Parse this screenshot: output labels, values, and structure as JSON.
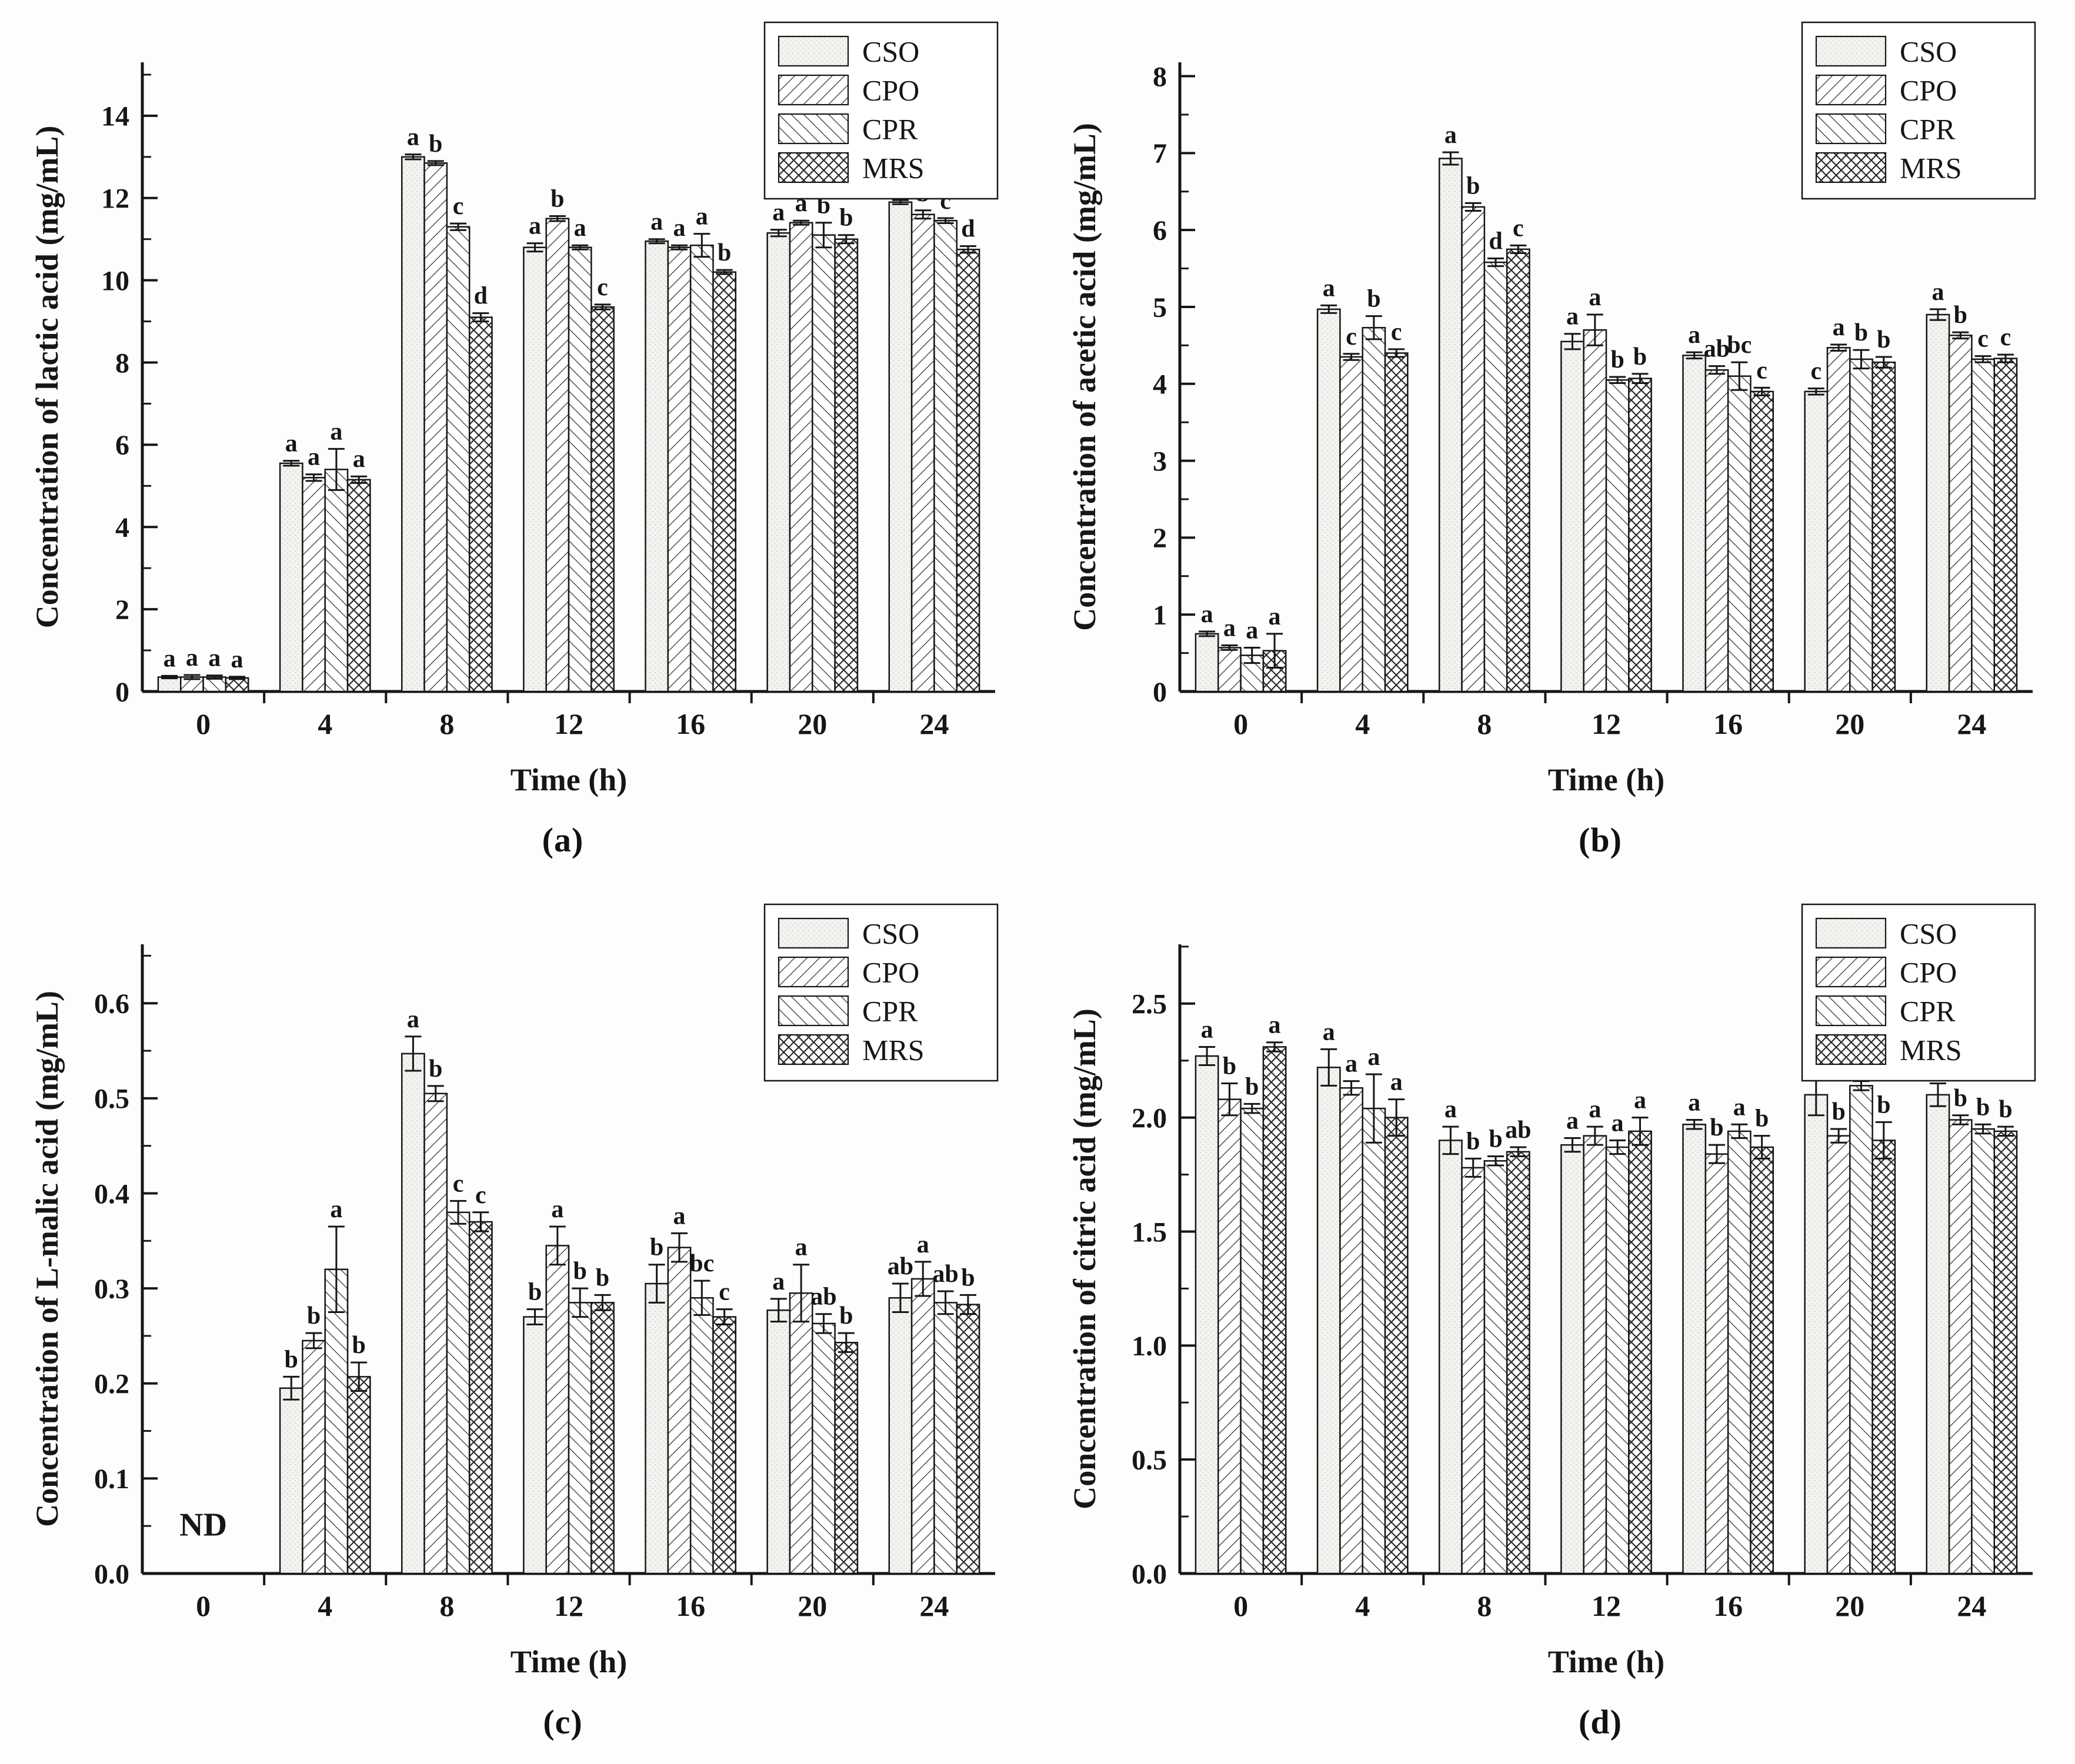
{
  "figure": {
    "background": "#fdfdfd",
    "ink": "#161616",
    "bar_fill_base": "#ffffff",
    "cso_fill": "#f3f2ef"
  },
  "legend": {
    "labels": [
      "CSO",
      "CPO",
      "CPR",
      "MRS"
    ],
    "patterns": [
      "dots",
      "diag-up",
      "diag-down",
      "crosshatch"
    ],
    "position": "top-right"
  },
  "chart_data": [
    {
      "id": "a",
      "type": "bar",
      "caption": "(a)",
      "xlabel": "Time (h)",
      "ylabel": "Concentration of lactic acid (mg/mL)",
      "categories": [
        "0",
        "4",
        "8",
        "12",
        "16",
        "20",
        "24"
      ],
      "ylim": [
        0,
        15.3
      ],
      "ytick_max": 14,
      "yticks_step": 2,
      "yticks_minor_step": 1,
      "ytick_decimals": 0,
      "grid": false,
      "series": [
        {
          "name": "CSO",
          "pattern": "dots",
          "values": [
            0.35,
            5.55,
            13.0,
            10.8,
            10.95,
            11.15,
            11.9
          ],
          "errors": [
            0.03,
            0.06,
            0.06,
            0.1,
            0.05,
            0.08,
            0.05
          ],
          "letters": [
            "a",
            "a",
            "a",
            "a",
            "a",
            "a",
            "a"
          ]
        },
        {
          "name": "CPO",
          "pattern": "diag-up",
          "values": [
            0.35,
            5.2,
            12.85,
            11.5,
            10.8,
            11.4,
            11.6
          ],
          "errors": [
            0.05,
            0.08,
            0.05,
            0.06,
            0.05,
            0.05,
            0.1
          ],
          "letters": [
            "a",
            "a",
            "b",
            "b",
            "a",
            "a",
            "b"
          ]
        },
        {
          "name": "CPR",
          "pattern": "diag-down",
          "values": [
            0.35,
            5.4,
            11.3,
            10.8,
            10.85,
            11.1,
            11.45
          ],
          "errors": [
            0.04,
            0.5,
            0.08,
            0.05,
            0.28,
            0.3,
            0.06
          ],
          "letters": [
            "a",
            "a",
            "c",
            "a",
            "a",
            "b",
            "c"
          ]
        },
        {
          "name": "MRS",
          "pattern": "crosshatch",
          "values": [
            0.33,
            5.15,
            9.1,
            9.35,
            10.2,
            11.0,
            10.75
          ],
          "errors": [
            0.03,
            0.08,
            0.1,
            0.06,
            0.05,
            0.1,
            0.08
          ],
          "letters": [
            "a",
            "a",
            "d",
            "c",
            "b",
            "b",
            "d"
          ]
        }
      ],
      "annotations": []
    },
    {
      "id": "b",
      "type": "bar",
      "caption": "(b)",
      "xlabel": "Time (h)",
      "ylabel": "Concentration of acetic acid (mg/mL)",
      "categories": [
        "0",
        "4",
        "8",
        "12",
        "16",
        "20",
        "24"
      ],
      "ylim": [
        0,
        8.18
      ],
      "ytick_max": 8,
      "yticks_step": 1,
      "yticks_minor_step": 0.5,
      "ytick_decimals": 0,
      "grid": false,
      "series": [
        {
          "name": "CSO",
          "pattern": "dots",
          "values": [
            0.75,
            4.97,
            6.93,
            4.55,
            4.37,
            3.9,
            4.9
          ],
          "errors": [
            0.03,
            0.05,
            0.08,
            0.1,
            0.04,
            0.04,
            0.07
          ],
          "letters": [
            "a",
            "a",
            "a",
            "a",
            "a",
            "c",
            "a"
          ]
        },
        {
          "name": "CPO",
          "pattern": "diag-up",
          "values": [
            0.57,
            4.35,
            6.3,
            4.7,
            4.18,
            4.47,
            4.63
          ],
          "errors": [
            0.03,
            0.04,
            0.05,
            0.2,
            0.05,
            0.04,
            0.04
          ],
          "letters": [
            "a",
            "c",
            "b",
            "a",
            "ab",
            "a",
            "b"
          ]
        },
        {
          "name": "CPR",
          "pattern": "diag-down",
          "values": [
            0.47,
            4.73,
            5.58,
            4.05,
            4.1,
            4.32,
            4.32
          ],
          "errors": [
            0.1,
            0.15,
            0.05,
            0.04,
            0.18,
            0.12,
            0.04
          ],
          "letters": [
            "a",
            "b",
            "d",
            "b",
            "bc",
            "b",
            "c"
          ]
        },
        {
          "name": "MRS",
          "pattern": "crosshatch",
          "values": [
            0.53,
            4.4,
            5.75,
            4.07,
            3.9,
            4.28,
            4.33
          ],
          "errors": [
            0.22,
            0.05,
            0.05,
            0.06,
            0.05,
            0.07,
            0.05
          ],
          "letters": [
            "a",
            "c",
            "c",
            "b",
            "c",
            "b",
            "c"
          ]
        }
      ],
      "annotations": []
    },
    {
      "id": "c",
      "type": "bar",
      "caption": "(c)",
      "xlabel": "Time (h)",
      "ylabel": "Concentration of L-malic acid (mg/mL)",
      "categories": [
        "0",
        "4",
        "8",
        "12",
        "16",
        "20",
        "24"
      ],
      "ylim": [
        0,
        0.662
      ],
      "ytick_max": 0.6,
      "yticks_step": 0.1,
      "yticks_minor_step": 0.05,
      "ytick_decimals": 1,
      "grid": false,
      "series": [
        {
          "name": "CSO",
          "pattern": "dots",
          "values": [
            null,
            0.195,
            0.547,
            0.27,
            0.305,
            0.277,
            0.29
          ],
          "errors": [
            0,
            0.012,
            0.018,
            0.008,
            0.02,
            0.012,
            0.015
          ],
          "letters": [
            null,
            "b",
            "a",
            "b",
            "b",
            "a",
            "ab"
          ]
        },
        {
          "name": "CPO",
          "pattern": "diag-up",
          "values": [
            null,
            0.245,
            0.505,
            0.345,
            0.343,
            0.295,
            0.31
          ],
          "errors": [
            0,
            0.008,
            0.008,
            0.02,
            0.015,
            0.03,
            0.018
          ],
          "letters": [
            null,
            "b",
            "b",
            "a",
            "a",
            "a",
            "a"
          ]
        },
        {
          "name": "CPR",
          "pattern": "diag-down",
          "values": [
            null,
            0.32,
            0.38,
            0.285,
            0.29,
            0.263,
            0.285
          ],
          "errors": [
            0,
            0.045,
            0.012,
            0.015,
            0.018,
            0.01,
            0.012
          ],
          "letters": [
            null,
            "a",
            "c",
            "b",
            "bc",
            "ab",
            "ab"
          ]
        },
        {
          "name": "MRS",
          "pattern": "crosshatch",
          "values": [
            null,
            0.207,
            0.37,
            0.285,
            0.27,
            0.243,
            0.283
          ],
          "errors": [
            0,
            0.015,
            0.01,
            0.008,
            0.008,
            0.01,
            0.01
          ],
          "letters": [
            null,
            "b",
            "c",
            "b",
            "c",
            "b",
            "b"
          ]
        }
      ],
      "annotations": [
        {
          "text": "ND",
          "category_index": 0,
          "y": 0.04
        }
      ]
    },
    {
      "id": "d",
      "type": "bar",
      "caption": "(d)",
      "xlabel": "Time (h)",
      "ylabel": "Concentration of citric acid (mg/mL)",
      "categories": [
        "0",
        "4",
        "8",
        "12",
        "16",
        "20",
        "24"
      ],
      "ylim": [
        0,
        2.76
      ],
      "ytick_max": 2.5,
      "yticks_step": 0.5,
      "yticks_minor_step": 0.25,
      "ytick_decimals": 1,
      "grid": false,
      "series": [
        {
          "name": "CSO",
          "pattern": "dots",
          "values": [
            2.27,
            2.22,
            1.9,
            1.88,
            1.97,
            2.1,
            2.1
          ],
          "errors": [
            0.04,
            0.08,
            0.06,
            0.03,
            0.02,
            0.09,
            0.05
          ],
          "letters": [
            "a",
            "a",
            "a",
            "a",
            "a",
            "a",
            "a"
          ]
        },
        {
          "name": "CPO",
          "pattern": "diag-up",
          "values": [
            2.08,
            2.13,
            1.78,
            1.92,
            1.84,
            1.92,
            1.99
          ],
          "errors": [
            0.07,
            0.03,
            0.04,
            0.04,
            0.04,
            0.03,
            0.02
          ],
          "letters": [
            "b",
            "a",
            "b",
            "a",
            "b",
            "b",
            "b"
          ]
        },
        {
          "name": "CPR",
          "pattern": "diag-down",
          "values": [
            2.04,
            2.04,
            1.81,
            1.87,
            1.94,
            2.14,
            1.95
          ],
          "errors": [
            0.02,
            0.15,
            0.02,
            0.03,
            0.03,
            0.02,
            0.02
          ],
          "letters": [
            "b",
            "a",
            "b",
            "a",
            "a",
            "a",
            "b"
          ]
        },
        {
          "name": "MRS",
          "pattern": "crosshatch",
          "values": [
            2.31,
            2.0,
            1.85,
            1.94,
            1.87,
            1.9,
            1.94
          ],
          "errors": [
            0.02,
            0.08,
            0.02,
            0.06,
            0.05,
            0.08,
            0.02
          ],
          "letters": [
            "a",
            "a",
            "ab",
            "a",
            "b",
            "b",
            "b"
          ]
        }
      ],
      "annotations": []
    }
  ]
}
